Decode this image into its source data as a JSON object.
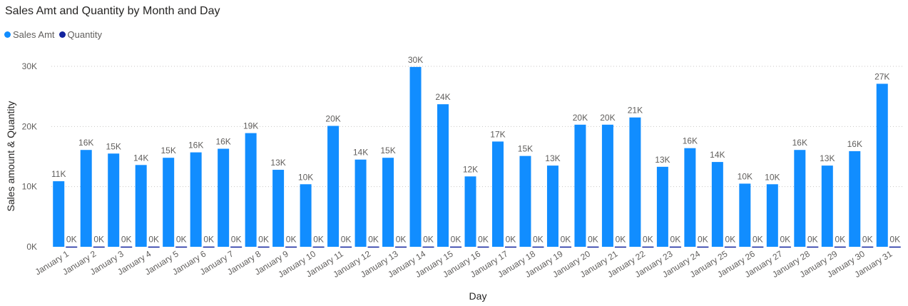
{
  "title": "Sales Amt and Quantity by Month and Day",
  "colors": {
    "sales": "#118DFF",
    "quantity": "#12239E"
  },
  "chart_data": {
    "type": "bar",
    "title": "Sales Amt and Quantity by Month and Day",
    "xlabel": "Day",
    "ylabel": "Sales amount & Quantity",
    "ylim": [
      0,
      30000
    ],
    "yticks": [
      "0K",
      "10K",
      "20K",
      "30K"
    ],
    "grid": true,
    "legend_position": "top-left",
    "categories": [
      "January 1",
      "January 2",
      "January 3",
      "January 4",
      "January 5",
      "January 6",
      "January 7",
      "January 8",
      "January 9",
      "January 10",
      "January 11",
      "January 12",
      "January 13",
      "January 14",
      "January 15",
      "January 16",
      "January 17",
      "January 18",
      "January 19",
      "January 20",
      "January 21",
      "January 22",
      "January 23",
      "January 24",
      "January 25",
      "January 26",
      "January 27",
      "January 28",
      "January 29",
      "January 30",
      "January 31"
    ],
    "series": [
      {
        "name": "Sales Amt",
        "values": [
          10900,
          16100,
          15500,
          13600,
          14800,
          15700,
          16300,
          18900,
          12800,
          10400,
          20100,
          14500,
          14800,
          29900,
          23700,
          11700,
          17500,
          15100,
          13500,
          20300,
          20300,
          21500,
          13300,
          16400,
          14100,
          10500,
          10400,
          16100,
          13500,
          15900,
          27100
        ],
        "labels": [
          "11K",
          "16K",
          "15K",
          "14K",
          "15K",
          "16K",
          "16K",
          "19K",
          "13K",
          "10K",
          "20K",
          "14K",
          "15K",
          "30K",
          "24K",
          "12K",
          "17K",
          "15K",
          "13K",
          "20K",
          "20K",
          "21K",
          "13K",
          "16K",
          "14K",
          "10K",
          "10K",
          "16K",
          "13K",
          "16K",
          "27K"
        ]
      },
      {
        "name": "Quantity",
        "values": [
          40,
          40,
          40,
          40,
          40,
          40,
          40,
          40,
          40,
          40,
          40,
          40,
          40,
          40,
          40,
          40,
          40,
          40,
          40,
          40,
          40,
          40,
          40,
          40,
          40,
          40,
          40,
          40,
          40,
          40,
          40
        ],
        "labels": [
          "0K",
          "0K",
          "0K",
          "0K",
          "0K",
          "0K",
          "0K",
          "0K",
          "0K",
          "0K",
          "0K",
          "0K",
          "0K",
          "0K",
          "0K",
          "0K",
          "0K",
          "0K",
          "0K",
          "0K",
          "0K",
          "0K",
          "0K",
          "0K",
          "0K",
          "0K",
          "0K",
          "0K",
          "0K",
          "0K",
          "0K"
        ]
      }
    ]
  }
}
